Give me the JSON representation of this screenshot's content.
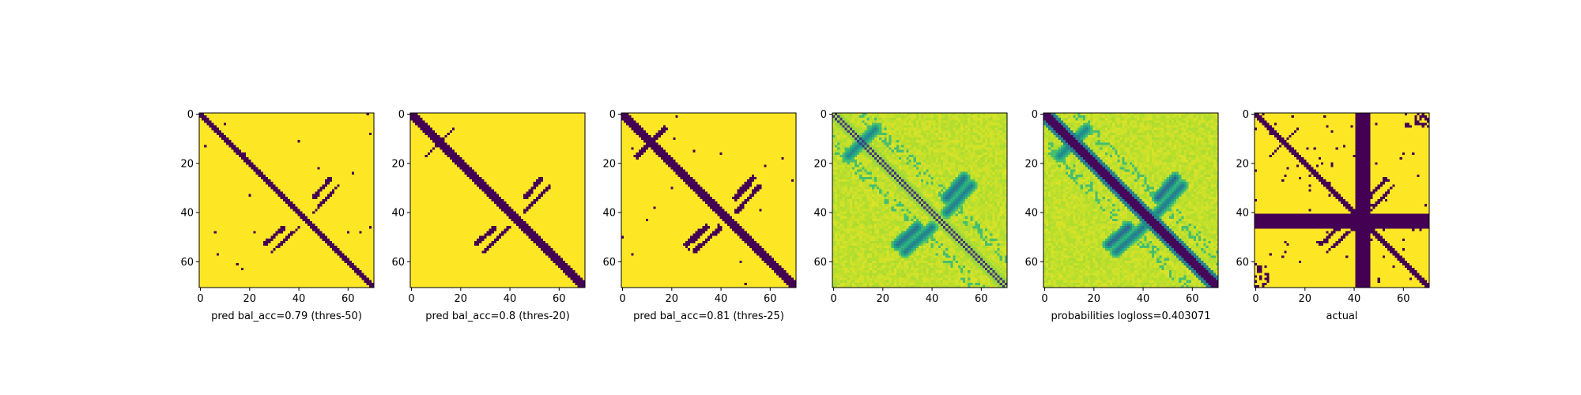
{
  "figure": {
    "background": "#ffffff",
    "colormap": "viridis",
    "colors": {
      "low": "#440154",
      "high": "#fde725"
    }
  },
  "chart_data": [
    {
      "type": "heatmap",
      "xlabel": "pred bal_acc=0.79 (thres-50)",
      "xticks": [
        0,
        20,
        40,
        60
      ],
      "yticks": [
        0,
        20,
        40,
        60
      ],
      "matrix_size": 71,
      "value_kind": "binary"
    },
    {
      "type": "heatmap",
      "xlabel": "pred bal_acc=0.8 (thres-20)",
      "xticks": [
        0,
        20,
        40,
        60
      ],
      "yticks": [
        0,
        20,
        40,
        60
      ],
      "matrix_size": 71,
      "value_kind": "binary"
    },
    {
      "type": "heatmap",
      "xlabel": "pred bal_acc=0.81 (thres-25)",
      "xticks": [
        0,
        20,
        40,
        60
      ],
      "yticks": [
        0,
        20,
        40,
        60
      ],
      "matrix_size": 71,
      "value_kind": "binary"
    },
    {
      "type": "heatmap",
      "xlabel": "",
      "xticks": [
        0,
        20,
        40,
        60
      ],
      "yticks": [
        0,
        20,
        40,
        60
      ],
      "matrix_size": 71,
      "value_kind": "continuous"
    },
    {
      "type": "heatmap",
      "xlabel": "probabilities logloss=0.403071",
      "xticks": [
        0,
        20,
        40,
        60
      ],
      "yticks": [
        0,
        20,
        40,
        60
      ],
      "matrix_size": 71,
      "value_kind": "continuous"
    },
    {
      "type": "heatmap",
      "xlabel": "actual",
      "xticks": [
        0,
        20,
        40,
        60
      ],
      "yticks": [
        0,
        20,
        40,
        60
      ],
      "matrix_size": 71,
      "value_kind": "binary"
    }
  ]
}
